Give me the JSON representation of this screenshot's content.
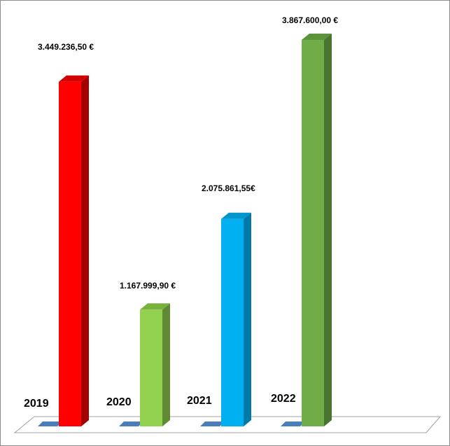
{
  "chart_data": {
    "type": "bar",
    "style": "3d-column",
    "categories": [
      "2019",
      "2020",
      "2021",
      "2022"
    ],
    "values": [
      3449236.5,
      1167999.9,
      2075861.55,
      3867600.0
    ],
    "data_labels": [
      "3.449.236,50 €",
      "1.167.999,90 €",
      "2.075.861,55€",
      "3.867.600,00 €"
    ],
    "colors": [
      "#ff0000",
      "#92d050",
      "#00b0f0",
      "#70ad47"
    ],
    "side_colors": [
      "#a50000",
      "#5f8a33",
      "#007aa8",
      "#487330"
    ],
    "top_colors": [
      "#d20000",
      "#78b13c",
      "#0095cc",
      "#5c9239"
    ],
    "floor_marker_color": "#4a7ebb",
    "title": "",
    "xlabel": "",
    "ylabel": "",
    "legend": "none",
    "grid": false,
    "ylim": [
      0,
      4000000
    ]
  }
}
